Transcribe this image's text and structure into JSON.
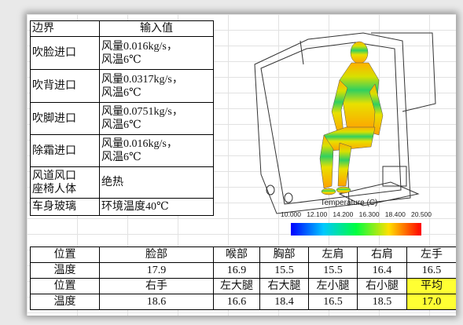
{
  "boundary_table": {
    "header": [
      "边界",
      "输入值"
    ],
    "rows": [
      [
        "吹脸进口",
        [
          "风量0.016kg/s，",
          "风温6℃"
        ]
      ],
      [
        "吹背进口",
        [
          "风量0.0317kg/s，",
          "风温6℃"
        ]
      ],
      [
        "吹脚进口",
        [
          "风量0.0751kg/s，",
          "风温6℃"
        ]
      ],
      [
        "除霜进口",
        [
          "风量0.016kg/s，",
          "风温6℃"
        ]
      ],
      [
        [
          "风道风口",
          "座椅人体"
        ],
        "绝热"
      ],
      [
        "车身玻璃",
        "环境温度40℃"
      ]
    ]
  },
  "figure": {
    "legend_title": "Temperature (C)",
    "legend_ticks": [
      "10.000",
      "12.100",
      "14.200",
      "16.300",
      "18.400",
      "20.500"
    ]
  },
  "result_table": {
    "rows": [
      [
        "位置",
        "脸部",
        "喉部",
        "胸部",
        "左肩",
        "右肩",
        "左手"
      ],
      [
        "温度",
        "17.9",
        "16.9",
        "15.5",
        "15.5",
        "16.4",
        "16.5"
      ],
      [
        "位置",
        "右手",
        "左大腿",
        "右大腿",
        "左小腿",
        "右小腿",
        "平均"
      ],
      [
        "温度",
        "18.6",
        "16.6",
        "18.4",
        "16.5",
        "18.5",
        "17.0"
      ]
    ]
  }
}
